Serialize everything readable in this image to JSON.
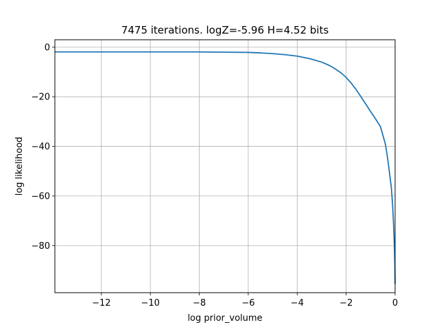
{
  "chart_data": {
    "type": "line",
    "title": "7475 iterations. logZ=-5.96 H=4.52 bits",
    "xlabel": "log prior_volume",
    "ylabel": "log likelihood",
    "xlim": [
      -13.9,
      0
    ],
    "ylim": [
      -99,
      3
    ],
    "grid": true,
    "x_ticks": [
      -12,
      -10,
      -8,
      -6,
      -4,
      -2,
      0
    ],
    "y_ticks": [
      0,
      -20,
      -40,
      -60,
      -80
    ],
    "x_tick_labels": [
      "−12",
      "−10",
      "−8",
      "−6",
      "−4",
      "−2",
      "0"
    ],
    "y_tick_labels": [
      "0",
      "−20",
      "−40",
      "−60",
      "−80"
    ],
    "series": [
      {
        "color": "#1f77b4",
        "x": [
          -13.9,
          -12,
          -10,
          -8,
          -7,
          -6,
          -5.5,
          -5,
          -4.5,
          -4,
          -3.5,
          -3,
          -2.7,
          -2.5,
          -2.2,
          -2,
          -1.8,
          -1.6,
          -1.4,
          -1.2,
          -1.0,
          -0.8,
          -0.6,
          -0.5,
          -0.4,
          -0.35,
          -0.3,
          -0.25,
          -0.2,
          -0.15,
          -0.1,
          -0.06,
          -0.03,
          -0.01,
          0
        ],
        "y": [
          -1.9,
          -1.9,
          -1.9,
          -1.9,
          -2.0,
          -2.1,
          -2.3,
          -2.6,
          -3.0,
          -3.6,
          -4.6,
          -6.0,
          -7.3,
          -8.4,
          -10.4,
          -12.2,
          -14.4,
          -17.0,
          -19.9,
          -22.9,
          -26.0,
          -28.9,
          -32.0,
          -35.5,
          -39.0,
          -42.0,
          -45.2,
          -49.0,
          -53.0,
          -57.0,
          -64.0,
          -72.0,
          -80.0,
          -88.0,
          -95.5
        ]
      }
    ]
  }
}
